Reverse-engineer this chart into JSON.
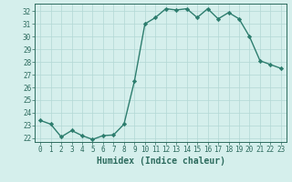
{
  "x": [
    0,
    1,
    2,
    3,
    4,
    5,
    6,
    7,
    8,
    9,
    10,
    11,
    12,
    13,
    14,
    15,
    16,
    17,
    18,
    19,
    20,
    21,
    22,
    23
  ],
  "y": [
    23.4,
    23.1,
    22.1,
    22.6,
    22.2,
    21.9,
    22.2,
    22.25,
    23.1,
    26.5,
    31.0,
    31.5,
    32.2,
    32.1,
    32.2,
    31.5,
    32.2,
    31.4,
    31.9,
    31.4,
    30.0,
    28.1,
    27.8,
    27.5
  ],
  "line_color": "#2d7d6e",
  "marker": "D",
  "marker_size": 2.2,
  "bg_color": "#d5efec",
  "grid_color": "#b2d8d4",
  "xlabel": "Humidex (Indice chaleur)",
  "xlim": [
    -0.5,
    23.5
  ],
  "ylim": [
    21.7,
    32.6
  ],
  "yticks": [
    22,
    23,
    24,
    25,
    26,
    27,
    28,
    29,
    30,
    31,
    32
  ],
  "xticks": [
    0,
    1,
    2,
    3,
    4,
    5,
    6,
    7,
    8,
    9,
    10,
    11,
    12,
    13,
    14,
    15,
    16,
    17,
    18,
    19,
    20,
    21,
    22,
    23
  ],
  "tick_fontsize": 5.5,
  "xlabel_fontsize": 7.0,
  "axis_color": "#2d6b5e",
  "linewidth": 1.0
}
